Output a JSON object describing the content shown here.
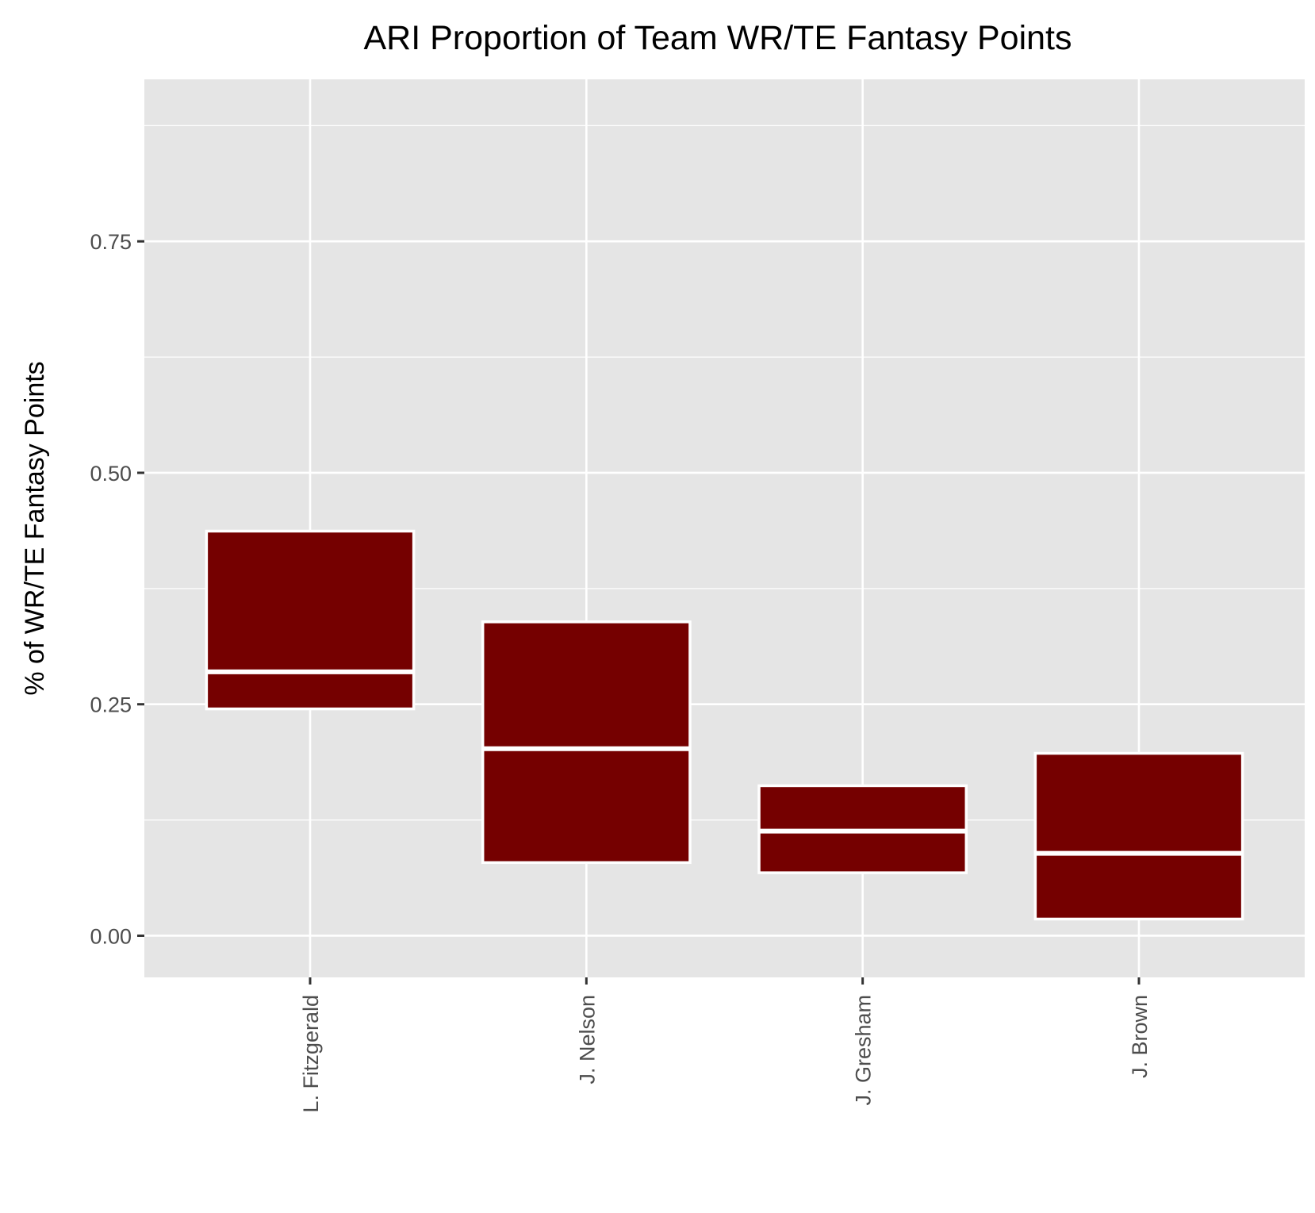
{
  "chart_data": {
    "type": "boxplot",
    "title": "ARI Proportion of Team WR/TE Fantasy Points",
    "xlabel": "",
    "ylabel": "% of WR/TE Fantasy Points",
    "categories": [
      "L. Fitzgerald",
      "J. Nelson",
      "J. Gresham",
      "J. Brown"
    ],
    "boxes": [
      {
        "category": "L. Fitzgerald",
        "q1": 0.245,
        "median": 0.285,
        "q3": 0.437
      },
      {
        "category": "J. Nelson",
        "q1": 0.079,
        "median": 0.202,
        "q3": 0.339
      },
      {
        "category": "J. Gresham",
        "q1": 0.068,
        "median": 0.113,
        "q3": 0.162
      },
      {
        "category": "J. Brown",
        "q1": 0.018,
        "median": 0.089,
        "q3": 0.197
      }
    ],
    "yticks": [
      0.0,
      0.25,
      0.5,
      0.75
    ],
    "ytick_labels": [
      "0.00",
      "0.25",
      "0.50",
      "0.75"
    ],
    "ylim": [
      -0.045,
      0.925
    ],
    "grid": true,
    "legend": "none",
    "colors": {
      "box_fill": "#750000",
      "box_stroke": "#ffffff",
      "panel_background": "#e5e5e5",
      "grid_line": "#ffffff",
      "tick_text": "#4d4d4d",
      "tick_mark": "#333333"
    }
  }
}
